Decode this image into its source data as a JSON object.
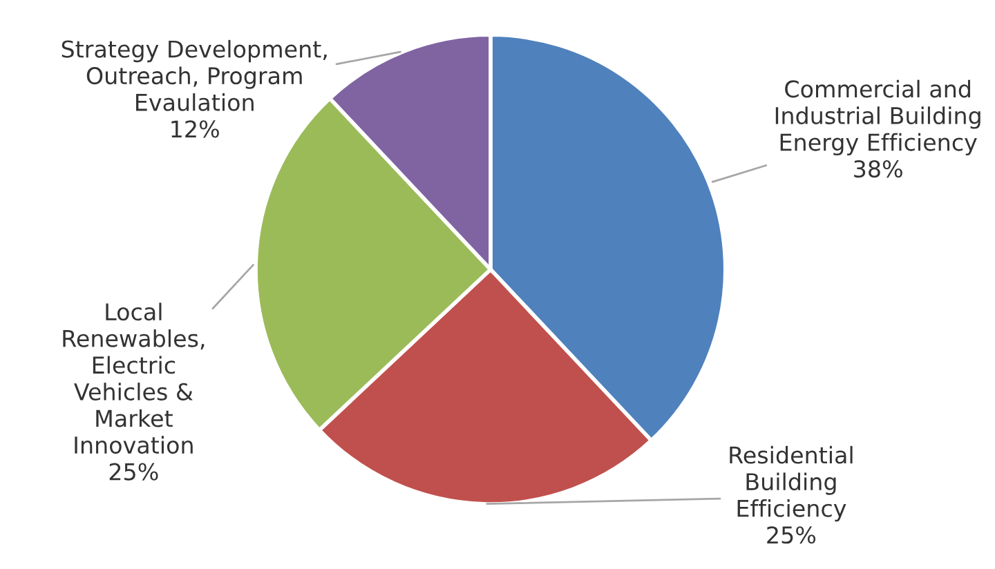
{
  "chart_data": {
    "type": "pie",
    "categories": [
      "Commercial and\nIndustrial Building\nEnergy Efficiency",
      "Residential\nBuilding\nEfficiency",
      "Local\nRenewables,\nElectric\nVehicles &\nMarket\nInnovation",
      "Strategy Development,\nOutreach, Program\nEvaulation"
    ],
    "values": [
      38,
      25,
      25,
      12
    ],
    "value_labels": [
      "38%",
      "25%",
      "25%",
      "12%"
    ],
    "colors": [
      "#4f81bd",
      "#c0504d",
      "#9bbb59",
      "#8064a2"
    ],
    "legend": false
  }
}
